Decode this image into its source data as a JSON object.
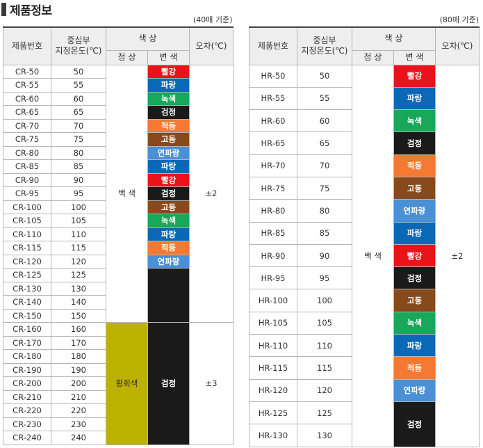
{
  "section_title": "제품정보",
  "colors": {
    "빨강": "#e9131c",
    "파랑": "#0a68b6",
    "녹색": "#17a85a",
    "검정": "#1a1a1a",
    "적등": "#f47a33",
    "고동": "#874a1d",
    "연파랑": "#4b8fd5",
    "황회색": "#bdb100",
    "white": "#ffffff"
  },
  "left": {
    "basis_note": "(40매 기준)",
    "headers": {
      "model": "제품번호",
      "temp": "중심부\n지정온도(℃)",
      "color_group": "색 상",
      "normal": "정 상",
      "changed": "변 색",
      "tolerance": "오차(℃)"
    },
    "rows": [
      {
        "model": "CR-50",
        "temp": "50"
      },
      {
        "model": "CR-55",
        "temp": "55"
      },
      {
        "model": "CR-60",
        "temp": "60"
      },
      {
        "model": "CR-65",
        "temp": "65"
      },
      {
        "model": "CR-70",
        "temp": "70"
      },
      {
        "model": "CR-75",
        "temp": "75"
      },
      {
        "model": "CR-80",
        "temp": "80"
      },
      {
        "model": "CR-85",
        "temp": "85"
      },
      {
        "model": "CR-90",
        "temp": "90"
      },
      {
        "model": "CR-95",
        "temp": "95"
      },
      {
        "model": "CR-100",
        "temp": "100"
      },
      {
        "model": "CR-105",
        "temp": "105"
      },
      {
        "model": "CR-110",
        "temp": "110"
      },
      {
        "model": "CR-115",
        "temp": "115"
      },
      {
        "model": "CR-120",
        "temp": "120"
      },
      {
        "model": "CR-125",
        "temp": "125"
      },
      {
        "model": "CR-130",
        "temp": "130"
      },
      {
        "model": "CR-140",
        "temp": "140"
      },
      {
        "model": "CR-150",
        "temp": "150"
      },
      {
        "model": "CR-160",
        "temp": "160"
      },
      {
        "model": "CR-170",
        "temp": "170"
      },
      {
        "model": "CR-180",
        "temp": "180"
      },
      {
        "model": "CR-190",
        "temp": "190"
      },
      {
        "model": "CR-200",
        "temp": "200"
      },
      {
        "model": "CR-210",
        "temp": "210"
      },
      {
        "model": "CR-220",
        "temp": "220"
      },
      {
        "model": "CR-230",
        "temp": "230"
      },
      {
        "model": "CR-240",
        "temp": "240"
      }
    ],
    "normal_groups": [
      {
        "label": "백 색",
        "rows": 19,
        "color": "white",
        "text_color": "#333333"
      },
      {
        "label": "황회색",
        "rows": 9,
        "color": "황회색",
        "text_color": "#333333"
      }
    ],
    "changed_groups": [
      {
        "label": "빨강",
        "rows": 1
      },
      {
        "label": "파랑",
        "rows": 1
      },
      {
        "label": "녹색",
        "rows": 1
      },
      {
        "label": "검정",
        "rows": 1
      },
      {
        "label": "적등",
        "rows": 1
      },
      {
        "label": "고동",
        "rows": 1
      },
      {
        "label": "연파랑",
        "rows": 1
      },
      {
        "label": "파랑",
        "rows": 1
      },
      {
        "label": "빨강",
        "rows": 1
      },
      {
        "label": "검정",
        "rows": 1
      },
      {
        "label": "고동",
        "rows": 1
      },
      {
        "label": "녹색",
        "rows": 1
      },
      {
        "label": "파랑",
        "rows": 1
      },
      {
        "label": "적등",
        "rows": 1
      },
      {
        "label": "연파랑",
        "rows": 1
      },
      {
        "label": "",
        "color": "검정",
        "rows": 4
      },
      {
        "label": "검정",
        "rows": 9
      }
    ],
    "tolerance_groups": [
      {
        "label": "±2",
        "rows": 19
      },
      {
        "label": "±3",
        "rows": 9
      }
    ]
  },
  "right": {
    "basis_note": "(80매 기준)",
    "headers": {
      "model": "제품번호",
      "temp": "중심부\n지정온도(℃)",
      "color_group": "색 상",
      "normal": "정 상",
      "changed": "변 색",
      "tolerance": "오차(℃)"
    },
    "rows": [
      {
        "model": "HR-50",
        "temp": "50"
      },
      {
        "model": "HR-55",
        "temp": "55"
      },
      {
        "model": "HR-60",
        "temp": "60"
      },
      {
        "model": "HR-65",
        "temp": "65"
      },
      {
        "model": "HR-70",
        "temp": "70"
      },
      {
        "model": "HR-75",
        "temp": "75"
      },
      {
        "model": "HR-80",
        "temp": "80"
      },
      {
        "model": "HR-85",
        "temp": "85"
      },
      {
        "model": "HR-90",
        "temp": "90"
      },
      {
        "model": "HR-95",
        "temp": "95"
      },
      {
        "model": "HR-100",
        "temp": "100"
      },
      {
        "model": "HR-105",
        "temp": "105"
      },
      {
        "model": "HR-110",
        "temp": "110"
      },
      {
        "model": "HR-115",
        "temp": "115"
      },
      {
        "model": "HR-120",
        "temp": "120"
      },
      {
        "model": "HR-125",
        "temp": "125"
      },
      {
        "model": "HR-130",
        "temp": "130"
      }
    ],
    "normal_groups": [
      {
        "label": "백 색",
        "rows": 17,
        "color": "white",
        "text_color": "#333333"
      }
    ],
    "changed_groups": [
      {
        "label": "빨강",
        "rows": 1
      },
      {
        "label": "파랑",
        "rows": 1
      },
      {
        "label": "녹색",
        "rows": 1
      },
      {
        "label": "검정",
        "rows": 1
      },
      {
        "label": "적등",
        "rows": 1
      },
      {
        "label": "고동",
        "rows": 1
      },
      {
        "label": "연파랑",
        "rows": 1
      },
      {
        "label": "파랑",
        "rows": 1
      },
      {
        "label": "빨강",
        "rows": 1
      },
      {
        "label": "검정",
        "rows": 1
      },
      {
        "label": "고동",
        "rows": 1
      },
      {
        "label": "녹색",
        "rows": 1
      },
      {
        "label": "파랑",
        "rows": 1
      },
      {
        "label": "적등",
        "rows": 1
      },
      {
        "label": "연파랑",
        "rows": 1
      },
      {
        "label": "검정",
        "rows": 2
      }
    ],
    "tolerance_groups": [
      {
        "label": "±2",
        "rows": 17
      }
    ]
  }
}
